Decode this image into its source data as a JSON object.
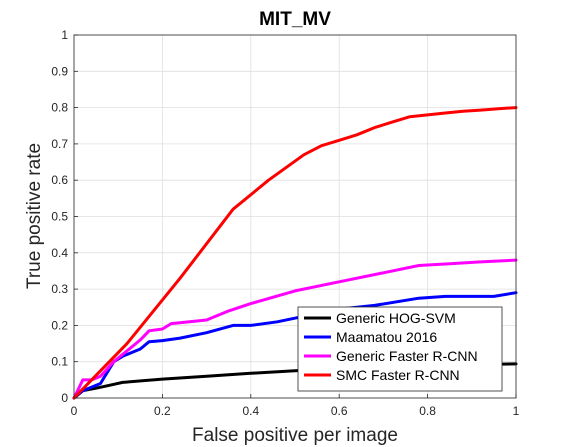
{
  "chart_data": {
    "type": "line",
    "title": "MIT_MV",
    "xlabel": "False positive per image",
    "ylabel": "True positive rate",
    "xlim": [
      0,
      1
    ],
    "ylim": [
      0,
      1
    ],
    "xticks": [
      0,
      0.2,
      0.4,
      0.6,
      0.8,
      1
    ],
    "xtick_labels": [
      "0",
      "0.2",
      "0.4",
      "0.6",
      "0.8",
      "1"
    ],
    "yticks": [
      0,
      0.1,
      0.2,
      0.3,
      0.4,
      0.5,
      0.6,
      0.7,
      0.8,
      0.9,
      1
    ],
    "ytick_labels": [
      "0",
      "0.1",
      "0.2",
      "0.3",
      "0.4",
      "0.5",
      "0.6",
      "0.7",
      "0.8",
      "0.9",
      "1"
    ],
    "grid": true,
    "legend_position": "bottom-right",
    "series": [
      {
        "name": "Generic HOG-SVM",
        "color": "#000000",
        "x": [
          0,
          0.02,
          0.05,
          0.08,
          0.11,
          0.2,
          0.3,
          0.4,
          0.5,
          0.6,
          0.7,
          0.8,
          0.9,
          1.0
        ],
        "y": [
          0,
          0.02,
          0.027,
          0.035,
          0.043,
          0.052,
          0.06,
          0.068,
          0.075,
          0.082,
          0.087,
          0.09,
          0.092,
          0.094
        ]
      },
      {
        "name": "Maamatou 2016",
        "color": "#0000ff",
        "x": [
          0,
          0.02,
          0.04,
          0.06,
          0.07,
          0.09,
          0.11,
          0.13,
          0.15,
          0.17,
          0.2,
          0.24,
          0.3,
          0.36,
          0.4,
          0.46,
          0.52,
          0.6,
          0.68,
          0.78,
          0.84,
          0.95,
          1.0
        ],
        "y": [
          0,
          0.02,
          0.03,
          0.04,
          0.06,
          0.1,
          0.115,
          0.125,
          0.135,
          0.155,
          0.158,
          0.165,
          0.18,
          0.2,
          0.2,
          0.21,
          0.225,
          0.245,
          0.255,
          0.275,
          0.28,
          0.28,
          0.29
        ]
      },
      {
        "name": "Generic Faster R-CNN",
        "color": "#ff00ff",
        "x": [
          0,
          0.02,
          0.04,
          0.06,
          0.09,
          0.11,
          0.13,
          0.15,
          0.17,
          0.2,
          0.22,
          0.3,
          0.35,
          0.4,
          0.5,
          0.6,
          0.7,
          0.78,
          0.85,
          0.92,
          1.0
        ],
        "y": [
          0,
          0.05,
          0.05,
          0.06,
          0.1,
          0.12,
          0.14,
          0.16,
          0.185,
          0.19,
          0.205,
          0.215,
          0.24,
          0.26,
          0.295,
          0.32,
          0.345,
          0.365,
          0.37,
          0.375,
          0.38
        ]
      },
      {
        "name": "SMC Faster R-CNN",
        "color": "#ff0000",
        "x": [
          0,
          0.12,
          0.24,
          0.36,
          0.44,
          0.52,
          0.56,
          0.6,
          0.64,
          0.68,
          0.72,
          0.76,
          0.8,
          0.84,
          0.88,
          0.92,
          0.96,
          1.0
        ],
        "y": [
          0,
          0.15,
          0.33,
          0.52,
          0.6,
          0.67,
          0.695,
          0.71,
          0.725,
          0.745,
          0.76,
          0.775,
          0.78,
          0.785,
          0.79,
          0.793,
          0.797,
          0.8
        ]
      }
    ]
  }
}
